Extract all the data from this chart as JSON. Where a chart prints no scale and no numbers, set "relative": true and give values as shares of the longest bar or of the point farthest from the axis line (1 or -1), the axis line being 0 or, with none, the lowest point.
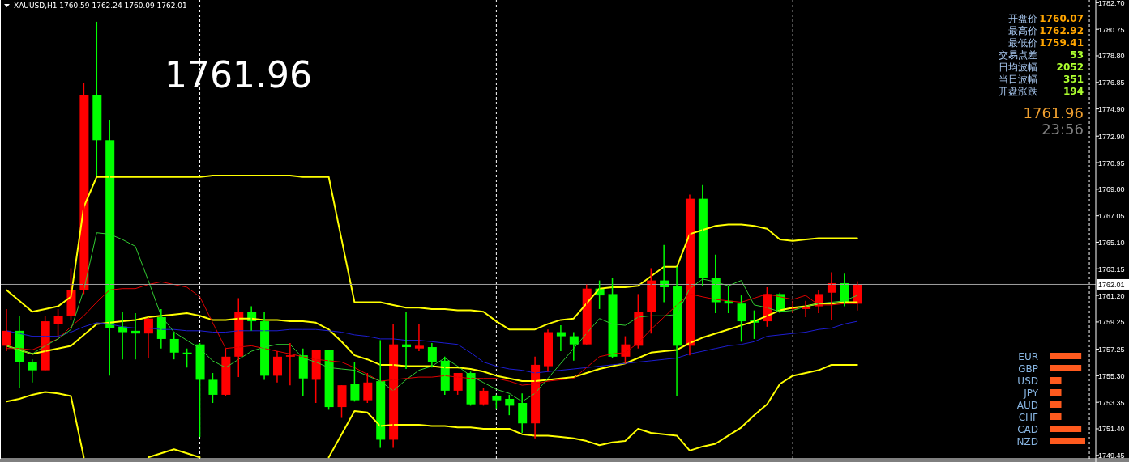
{
  "chart_data": [
    {
      "type": "candlestick",
      "title": "XAUUSD,H1 1760.59 1762.24 1760.09 1762.01",
      "categories": [
        null,
        null,
        null,
        null,
        null,
        null,
        null,
        null,
        null,
        null,
        null,
        null,
        null,
        null,
        null,
        null,
        null,
        null,
        null,
        null,
        null,
        null,
        null,
        null,
        null,
        null,
        null,
        null,
        null,
        null,
        null,
        null,
        null,
        null,
        null,
        null,
        null,
        null,
        null,
        null,
        null,
        null,
        null,
        null,
        null,
        null,
        null,
        null,
        null,
        null,
        null,
        null,
        null,
        null,
        null,
        null,
        null,
        null,
        null,
        null,
        null,
        null,
        null,
        null,
        null,
        null,
        null,
        null,
        null,
        null,
        null,
        null,
        null,
        null,
        null,
        null,
        null,
        null,
        null,
        null,
        null,
        null,
        null,
        null,
        null
      ],
      "ohlc": [
        [
          1757.5,
          1760.2,
          1757.1,
          1758.6
        ],
        [
          1758.6,
          1759.7,
          1754.4,
          1756.3
        ],
        [
          1756.3,
          1756.5,
          1754.8,
          1755.7
        ],
        [
          1755.7,
          1759.7,
          1755.7,
          1759.3
        ],
        [
          1759.1,
          1760.2,
          1758.2,
          1759.7
        ],
        [
          1759.7,
          1763.2,
          1759.4,
          1761.6
        ],
        [
          1761.6,
          1776.8,
          1761.3,
          1775.9
        ],
        [
          1775.9,
          1781.3,
          1770.0,
          1772.6
        ],
        [
          1772.6,
          1774.1,
          1755.3,
          1758.8
        ],
        [
          1758.9,
          1760.0,
          1756.5,
          1758.5
        ],
        [
          1758.6,
          1759.9,
          1756.5,
          1758.4
        ],
        [
          1758.4,
          1759.6,
          1756.6,
          1759.5
        ],
        [
          1759.6,
          1760.2,
          1757.3,
          1758.0
        ],
        [
          1758.0,
          1758.5,
          1756.5,
          1757.0
        ],
        [
          1757.0,
          1757.3,
          1755.9,
          1756.9
        ],
        [
          1757.6,
          1757.7,
          1750.8,
          1755.0
        ],
        [
          1755.0,
          1755.5,
          1753.3,
          1753.9
        ],
        [
          1753.9,
          1757.3,
          1753.8,
          1756.7
        ],
        [
          1756.7,
          1761.0,
          1755.2,
          1760.0
        ],
        [
          1760.0,
          1760.4,
          1758.6,
          1759.3
        ],
        [
          1759.3,
          1760.0,
          1755.0,
          1755.3
        ],
        [
          1755.3,
          1757.1,
          1754.8,
          1756.7
        ],
        [
          1756.7,
          1757.7,
          1754.6,
          1756.8
        ],
        [
          1756.8,
          1757.3,
          1753.8,
          1755.1
        ],
        [
          1755.0,
          1757.2,
          1753.3,
          1757.2
        ],
        [
          1757.2,
          1757.2,
          1752.8,
          1753.0
        ],
        [
          1753.0,
          1754.6,
          1752.2,
          1754.6
        ],
        [
          1754.7,
          1756.3,
          1753.4,
          1753.5
        ],
        [
          1753.5,
          1755.5,
          1753.3,
          1754.8
        ],
        [
          1754.9,
          1757.9,
          1750.0,
          1750.6
        ],
        [
          1750.6,
          1759.1,
          1750.0,
          1757.6
        ],
        [
          1757.6,
          1760.0,
          1755.8,
          1757.4
        ],
        [
          1757.3,
          1759.1,
          1757.1,
          1757.5
        ],
        [
          1757.4,
          1757.7,
          1755.9,
          1756.3
        ],
        [
          1756.4,
          1756.7,
          1753.9,
          1754.2
        ],
        [
          1754.2,
          1755.5,
          1753.9,
          1755.5
        ],
        [
          1755.5,
          1755.6,
          1753.1,
          1753.2
        ],
        [
          1753.2,
          1754.4,
          1753.1,
          1754.2
        ],
        [
          1753.8,
          1753.9,
          1752.9,
          1753.5
        ],
        [
          1753.6,
          1753.9,
          1752.4,
          1753.1
        ],
        [
          1753.3,
          1754.0,
          1751.1,
          1751.8
        ],
        [
          1751.8,
          1756.7,
          1750.7,
          1756.1
        ],
        [
          1756.0,
          1758.7,
          1755.6,
          1758.5
        ],
        [
          1758.5,
          1759.0,
          1757.1,
          1758.2
        ],
        [
          1758.2,
          1758.5,
          1756.4,
          1757.6
        ],
        [
          1757.6,
          1762.0,
          1757.6,
          1761.7
        ],
        [
          1761.7,
          1762.3,
          1760.2,
          1761.2
        ],
        [
          1761.3,
          1762.5,
          1756.6,
          1756.7
        ],
        [
          1756.7,
          1758.2,
          1756.2,
          1757.6
        ],
        [
          1757.5,
          1761.3,
          1757.3,
          1760.0
        ],
        [
          1760.0,
          1763.2,
          1758.4,
          1762.3
        ],
        [
          1762.3,
          1764.9,
          1760.7,
          1761.8
        ],
        [
          1761.9,
          1763.3,
          1753.8,
          1757.5
        ],
        [
          1757.5,
          1768.6,
          1756.8,
          1768.3
        ],
        [
          1768.3,
          1769.3,
          1761.9,
          1762.5
        ],
        [
          1762.5,
          1764.2,
          1759.9,
          1760.7
        ],
        [
          1760.8,
          1761.9,
          1759.9,
          1760.6
        ],
        [
          1760.6,
          1761.2,
          1757.8,
          1759.3
        ],
        [
          1759.4,
          1760.1,
          1758.0,
          1759.2
        ],
        [
          1759.3,
          1761.8,
          1758.9,
          1761.3
        ],
        [
          1761.3,
          1761.4,
          1759.9,
          1760.0
        ],
        [
          1760.2,
          1760.8,
          1759.9,
          1760.3
        ],
        [
          1760.2,
          1760.8,
          1759.6,
          1760.4
        ],
        [
          1760.4,
          1761.6,
          1759.9,
          1761.3
        ],
        [
          1761.4,
          1762.9,
          1759.4,
          1762.1
        ],
        [
          1762.1,
          1762.8,
          1760.4,
          1760.6
        ],
        [
          1760.59,
          1762.24,
          1760.09,
          1762.01
        ],
        null,
        null,
        null,
        null,
        null,
        null,
        null,
        null,
        null,
        null,
        null,
        null,
        null,
        null,
        null,
        null,
        null,
        null
      ],
      "colors": [
        "#ff0000",
        "#00ff00",
        "#00ff00",
        "#ff0000",
        "#ff0000",
        "#ff0000",
        "#ff0000",
        "#00ff00",
        "#00ff00",
        "#00ff00",
        "#00ff00",
        "#ff0000",
        "#00ff00",
        "#00ff00",
        "#00ff00",
        "#00ff00",
        "#00ff00",
        "#ff0000",
        "#ff0000",
        "#00ff00",
        "#00ff00",
        "#ff0000",
        "#ff0000",
        "#00ff00",
        "#ff0000",
        "#00ff00",
        "#ff0000",
        "#00ff00",
        "#ff0000",
        "#00ff00",
        "#ff0000",
        "#00ff00",
        "#ff0000",
        "#00ff00",
        "#00ff00",
        "#ff0000",
        "#00ff00",
        "#ff0000",
        "#00ff00",
        "#00ff00",
        "#00ff00",
        "#ff0000",
        "#ff0000",
        "#00ff00",
        "#00ff00",
        "#ff0000",
        "#00ff00",
        "#00ff00",
        "#ff0000",
        "#ff0000",
        "#ff0000",
        "#00ff00",
        "#00ff00",
        "#ff0000",
        "#00ff00",
        "#00ff00",
        "#00ff00",
        "#00ff00",
        "#00ff00",
        "#ff0000",
        "#00ff00",
        "#ff0000",
        "#ff0000",
        "#ff0000",
        "#ff0000",
        "#00ff00",
        "#ff0000",
        null,
        null,
        null,
        null,
        null,
        null,
        null,
        null,
        null,
        null,
        null,
        null,
        null,
        null,
        null,
        null,
        null,
        null
      ],
      "series": [
        {
          "type": "line",
          "color": "#ffff00",
          "values": [
            1761.6,
            1760.8,
            1760.0,
            1760.2,
            1760.4,
            1761.1,
            1767.7,
            1769.9,
            1769.9,
            1769.9,
            1769.9,
            1769.9,
            1769.9,
            1769.9,
            1769.9,
            1769.9,
            1770.0,
            1770.0,
            1770.0,
            1770.0,
            1770.0,
            1770.0,
            1770.0,
            1769.9,
            1769.9,
            1769.9,
            1765.3,
            1760.7,
            1760.7,
            1760.7,
            1760.5,
            1760.3,
            1760.3,
            1760.2,
            1760.2,
            1760.1,
            1760.1,
            1760.0,
            1759.3,
            1758.7,
            1758.7,
            1758.7,
            1759.1,
            1759.4,
            1759.5,
            1760.6,
            1761.7,
            1761.8,
            1761.8,
            1761.9,
            1762.6,
            1763.3,
            1763.3,
            1765.7,
            1766.0,
            1766.3,
            1766.4,
            1766.4,
            1766.3,
            1766.1,
            1765.3,
            1765.2,
            1765.3,
            1765.4,
            1765.4,
            1765.4,
            1765.4,
            null,
            null,
            null,
            null,
            null,
            null,
            null,
            null,
            null,
            null,
            null,
            null,
            null,
            null,
            null,
            null,
            null,
            null
          ]
        },
        {
          "type": "line",
          "color": "#ffff00",
          "values": [
            1757.5,
            1757.2,
            1756.9,
            1757.1,
            1757.3,
            1757.5,
            1758.3,
            1759.1,
            1759.2,
            1759.3,
            1759.4,
            1759.6,
            1759.7,
            1759.8,
            1759.9,
            1759.7,
            1759.4,
            1759.4,
            1759.5,
            1759.5,
            1759.4,
            1759.4,
            1759.3,
            1759.3,
            1759.2,
            1758.7,
            1757.8,
            1756.8,
            1756.5,
            1756.1,
            1756.1,
            1756.0,
            1756.0,
            1756.0,
            1755.9,
            1755.9,
            1755.8,
            1755.6,
            1755.3,
            1755.1,
            1754.9,
            1754.9,
            1755.0,
            1755.1,
            1755.2,
            1755.5,
            1755.8,
            1756.0,
            1756.2,
            1756.6,
            1757.0,
            1757.1,
            1757.2,
            1757.7,
            1758.1,
            1758.4,
            1758.7,
            1759.0,
            1759.3,
            1759.7,
            1760.1,
            1760.3,
            1760.4,
            1760.6,
            1760.6,
            1760.7,
            1760.7,
            null,
            null,
            null,
            null,
            null,
            null,
            null,
            null,
            null,
            null,
            null,
            null,
            null,
            null,
            null,
            null,
            null,
            null
          ]
        },
        {
          "type": "line",
          "color": "#ffff00",
          "values": [
            1753.4,
            1753.6,
            1753.9,
            1754.1,
            1754.0,
            1753.8,
            1749.3,
            null,
            null,
            null,
            null,
            1749.3,
            1749.6,
            1749.9,
            1749.6,
            1749.3,
            null,
            null,
            null,
            null,
            null,
            null,
            null,
            null,
            null,
            1749.3,
            1751.0,
            1752.7,
            1752.6,
            1751.6,
            1751.7,
            1751.7,
            1751.7,
            1751.6,
            1751.6,
            1751.5,
            1751.5,
            1751.4,
            1751.4,
            1751.4,
            1751.0,
            1750.9,
            1750.9,
            1750.8,
            1750.7,
            1750.5,
            1750.2,
            1750.4,
            1750.5,
            1751.4,
            1751.1,
            1751.0,
            1750.9,
            1749.8,
            1750.1,
            1750.3,
            1750.9,
            1751.5,
            1752.4,
            1753.2,
            1754.7,
            1755.3,
            1755.5,
            1755.7,
            1756.1,
            1756.1,
            1756.1,
            null,
            null,
            null,
            null,
            null,
            null,
            null,
            null,
            null,
            null,
            null,
            null,
            null,
            null,
            null,
            null,
            null,
            null
          ]
        },
        {
          "type": "line",
          "color": "#1e1ed2",
          "values": [
            1758.6,
            1758.4,
            1758.2,
            1758.2,
            1758.2,
            1758.5,
            1758.9,
            1759.2,
            1759.1,
            1758.9,
            1758.8,
            1758.8,
            1758.7,
            1758.7,
            1758.6,
            1758.6,
            1758.5,
            1758.5,
            1758.6,
            1758.6,
            1758.6,
            1758.6,
            1758.7,
            1758.7,
            1758.7,
            1758.6,
            1758.5,
            1758.3,
            1758.2,
            1758.0,
            1758.0,
            1757.9,
            1757.9,
            1757.8,
            1757.7,
            1757.6,
            1757.0,
            1756.3,
            1756.0,
            1755.8,
            1755.7,
            1755.5,
            1755.6,
            1755.7,
            1755.8,
            1755.9,
            1756.0,
            1756.1,
            1756.2,
            1756.3,
            1756.4,
            1756.5,
            1756.6,
            1756.9,
            1757.1,
            1757.3,
            1757.5,
            1757.6,
            1757.8,
            1758.2,
            1758.3,
            1758.4,
            1758.5,
            1758.7,
            1758.8,
            1759.1,
            1759.3,
            null,
            null,
            null,
            null,
            null,
            null,
            null,
            null,
            null,
            null,
            null,
            null,
            null,
            null,
            null,
            null,
            null,
            null
          ]
        },
        {
          "type": "line",
          "color": "#e00000",
          "values": [
            1757.3,
            1757.3,
            1757.2,
            1757.6,
            1758.0,
            1758.9,
            1759.7,
            1760.7,
            1761.6,
            1761.7,
            1761.7,
            1762.0,
            1762.2,
            1762.0,
            1761.8,
            1761.1,
            1759.2,
            1757.3,
            1757.4,
            1757.5,
            1757.3,
            1757.1,
            1756.9,
            1756.7,
            1756.5,
            1756.4,
            1756.3,
            1755.9,
            1755.4,
            1754.9,
            1755.0,
            1755.1,
            1755.2,
            1755.2,
            1755.3,
            1755.2,
            1755.1,
            1755.1,
            1755.1,
            1754.9,
            1754.6,
            1754.7,
            1754.9,
            1755.0,
            1755.1,
            1755.9,
            1756.7,
            1756.9,
            1757.0,
            1757.7,
            1758.7,
            1759.6,
            1760.5,
            1761.3,
            1761.1,
            1760.9,
            1760.8,
            1760.7,
            1761.0,
            1761.3,
            1761.1,
            1760.9,
            1761.2,
            1760.5,
            1760.5,
            1760.6,
            1760.6,
            null,
            null,
            null,
            null,
            null,
            null,
            null,
            null,
            null,
            null,
            null,
            null,
            null,
            null,
            null,
            null,
            null,
            null
          ]
        },
        {
          "type": "line",
          "color": "#32cd32",
          "values": [
            1757.5,
            1757.2,
            1756.9,
            1757.5,
            1758.0,
            1758.7,
            1761.6,
            1765.8,
            1765.7,
            1765.3,
            1764.8,
            1762.3,
            1759.7,
            1758.5,
            1757.9,
            1757.3,
            1756.4,
            1755.9,
            1756.5,
            1757.1,
            1757.4,
            1757.6,
            1757.6,
            1756.6,
            1756.3,
            1755.9,
            1755.8,
            1755.7,
            1755.3,
            1754.9,
            1754.2,
            1755.0,
            1755.7,
            1756.0,
            1756.6,
            1756.0,
            1755.3,
            1754.8,
            1754.3,
            1754.0,
            1753.4,
            1754.0,
            1755.1,
            1756.2,
            1757.3,
            1758.4,
            1759.5,
            1759.1,
            1759.0,
            1759.6,
            1759.7,
            1759.7,
            1759.8,
            1761.7,
            1762.4,
            1762.2,
            1761.9,
            1762.3,
            1760.5,
            1760.3,
            1760.0,
            1760.1,
            1760.4,
            1760.6,
            1760.7,
            1760.8,
            1761.2,
            null,
            null,
            null,
            null,
            null,
            null,
            null,
            null,
            null,
            null,
            null,
            null,
            null,
            null,
            null,
            null,
            null,
            null
          ]
        }
      ],
      "ylim": [
        1749.2,
        1782.9
      ],
      "yticks": [
        {
          "value": 1782.7,
          "label": "1782.70"
        },
        {
          "value": 1780.75,
          "label": "1780.75"
        },
        {
          "value": 1778.8,
          "label": "1778.80"
        },
        {
          "value": 1776.85,
          "label": "1776.85"
        },
        {
          "value": 1774.9,
          "label": "1774.90"
        },
        {
          "value": 1772.9,
          "label": "1772.90"
        },
        {
          "value": 1770.95,
          "label": "1770.95"
        },
        {
          "value": 1769,
          "label": "1769.00"
        },
        {
          "value": 1767.05,
          "label": "1767.05"
        },
        {
          "value": 1765.1,
          "label": "1765.10"
        },
        {
          "value": 1763.15,
          "label": "1763.15"
        },
        {
          "value": 1761.2,
          "label": "1761.20"
        },
        {
          "value": 1759.25,
          "label": "1759.25"
        },
        {
          "value": 1757.25,
          "label": "1757.25"
        },
        {
          "value": 1755.3,
          "label": "1755.30"
        },
        {
          "value": 1753.35,
          "label": "1753.35"
        },
        {
          "value": 1751.4,
          "label": "1751.40"
        },
        {
          "value": 1749.45,
          "label": "1749.45"
        }
      ],
      "ref_lines": [
        {
          "axis": "y",
          "value": 1762.01,
          "label": "1762.01",
          "color": "#a0a0a0"
        }
      ],
      "annotations": [
        "1761.96"
      ],
      "tick_labels": "y",
      "grid": "x"
    },
    {
      "type": "other",
      "categories": [
        "开盘价",
        "最高价",
        "最低价",
        "交易点差",
        "日均波幅",
        "当日波幅",
        "开盘涨跌"
      ],
      "value_labels": [
        "1760.07",
        "1762.92",
        "1759.41",
        "53",
        "2052",
        "351",
        "194"
      ],
      "colors": [
        "#ffa500",
        "#ffa500",
        "#ffa500",
        "#adff2f",
        "#adff2f",
        "#adff2f",
        "#adff2f"
      ],
      "annotations": [
        "1761.96",
        "23:56"
      ]
    },
    {
      "type": "bar",
      "orientation": "horizontal",
      "relative": true,
      "categories": [
        "EUR",
        "GBP",
        "USD",
        "JPY",
        "AUD",
        "CHF",
        "CAD",
        "NZD"
      ],
      "values": [
        0.89,
        0.89,
        0.33,
        0.33,
        0.33,
        0.33,
        0.89,
        1
      ],
      "color": "#ff5a1e"
    }
  ]
}
